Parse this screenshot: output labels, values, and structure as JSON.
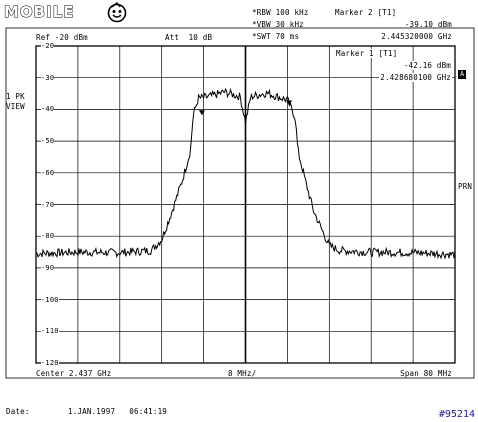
{
  "brand": {
    "logo_text": "MOBILE",
    "logo_icon": "smiley-bird-icon"
  },
  "settings": {
    "rbw": "*RBW 100 kHz",
    "vbw": "*VBW 30 kHz",
    "swt": "*SWT 70 ms",
    "ref": "Ref -20 dBm",
    "att": "Att  10 dB"
  },
  "markers": {
    "m2_title": "Marker 2 [T1]",
    "m2_level": "-39.10 dBm",
    "m2_freq": "2.445320000 GHz",
    "m1_title": "Marker 1 [T1]",
    "m1_level": "-42.16 dBm",
    "m1_freq": "2.428680100 GHz"
  },
  "side": {
    "trace_mode_1": "1 PK",
    "trace_mode_2": "VIEW",
    "badge_a": "A",
    "prn": "PRN"
  },
  "footer": {
    "center": "Center 2.437 GHz",
    "div": "8 MHz/",
    "span": "Span 80 MHz",
    "date_label": "Date:",
    "date_value": "1.JAN.1997   06:41:19",
    "id": "#95214"
  },
  "chart_data": {
    "type": "line",
    "title": "",
    "xlabel": "",
    "ylabel": "",
    "y_unit": "dBm",
    "xlim": [
      2.397,
      2.477
    ],
    "ylim": [
      -120,
      -20
    ],
    "y_ticks": [
      "-20",
      "-30",
      "-40",
      "-50",
      "-60",
      "-70",
      "-80",
      "-90",
      "-100",
      "-110",
      "-120"
    ],
    "grid": true,
    "series": [
      {
        "x": [
          2.397,
          2.405,
          2.413,
          2.419,
          2.421,
          2.423,
          2.425,
          2.4265,
          2.427,
          2.428,
          2.43,
          2.433,
          2.436,
          2.437,
          2.438,
          2.441,
          2.444,
          2.445,
          2.4465,
          2.447,
          2.4485,
          2.45,
          2.452,
          2.453,
          2.455,
          2.46,
          2.47,
          2.477
        ],
        "y": [
          -85.5,
          -85.0,
          -85.2,
          -84.5,
          -81.0,
          -72.0,
          -62.0,
          -53.0,
          -42.0,
          -36.5,
          -36.0,
          -34.5,
          -36.0,
          -44.0,
          -36.0,
          -34.8,
          -36.5,
          -37.0,
          -42.5,
          -53.0,
          -63.0,
          -72.0,
          -79.5,
          -83.0,
          -84.5,
          -85.0,
          -85.2,
          -85.8
        ]
      }
    ],
    "markers": [
      {
        "label": "1",
        "x": 2.42868,
        "y": -42.16
      },
      {
        "label": "2",
        "x": 2.44532,
        "y": -39.1
      }
    ]
  }
}
